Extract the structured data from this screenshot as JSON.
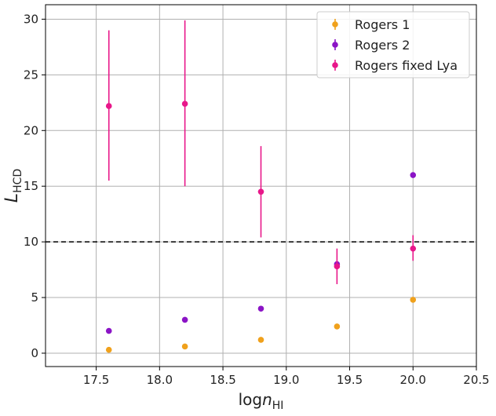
{
  "chart_data": {
    "type": "scatter",
    "xlabel": {
      "main": "log",
      "var": "n",
      "sub": "HI"
    },
    "ylabel": {
      "var": "L",
      "sub": "HCD"
    },
    "xlim": [
      17.1,
      20.5
    ],
    "ylim": [
      -1.2,
      31.3
    ],
    "xticks": [
      17.5,
      18.0,
      18.5,
      19.0,
      19.5,
      20.0,
      20.5
    ],
    "xtick_labels": [
      "17.5",
      "18.0",
      "18.5",
      "19.0",
      "19.5",
      "20.0",
      "20.5"
    ],
    "yticks": [
      0,
      5,
      10,
      15,
      20,
      25,
      30
    ],
    "ytick_labels": [
      "0",
      "5",
      "10",
      "15",
      "20",
      "25",
      "30"
    ],
    "grid": true,
    "hline": {
      "y": 10,
      "style": "dashed",
      "color": "#000000"
    },
    "legend_position": "top-right",
    "series": [
      {
        "name": "Rogers 1",
        "color": "#f0a11c",
        "points": [
          {
            "x": 17.6,
            "y": 0.3
          },
          {
            "x": 18.2,
            "y": 0.6
          },
          {
            "x": 18.8,
            "y": 1.2
          },
          {
            "x": 19.4,
            "y": 2.4
          },
          {
            "x": 20.0,
            "y": 4.8
          }
        ]
      },
      {
        "name": "Rogers 2",
        "color": "#8b14c6",
        "points": [
          {
            "x": 17.6,
            "y": 2.0
          },
          {
            "x": 18.2,
            "y": 3.0
          },
          {
            "x": 18.8,
            "y": 4.0
          },
          {
            "x": 19.4,
            "y": 8.0
          },
          {
            "x": 20.0,
            "y": 16.0
          }
        ]
      },
      {
        "name": "Rogers fixed Lya",
        "color": "#e8178a",
        "points": [
          {
            "x": 17.6,
            "y": 22.2,
            "ylow": 15.5,
            "yhigh": 29.0
          },
          {
            "x": 18.2,
            "y": 22.4,
            "ylow": 15.0,
            "yhigh": 29.9
          },
          {
            "x": 18.8,
            "y": 14.5,
            "ylow": 10.4,
            "yhigh": 18.6
          },
          {
            "x": 19.4,
            "y": 7.8,
            "ylow": 6.2,
            "yhigh": 9.4
          },
          {
            "x": 20.0,
            "y": 9.4,
            "ylow": 8.3,
            "yhigh": 10.6
          }
        ]
      }
    ]
  }
}
